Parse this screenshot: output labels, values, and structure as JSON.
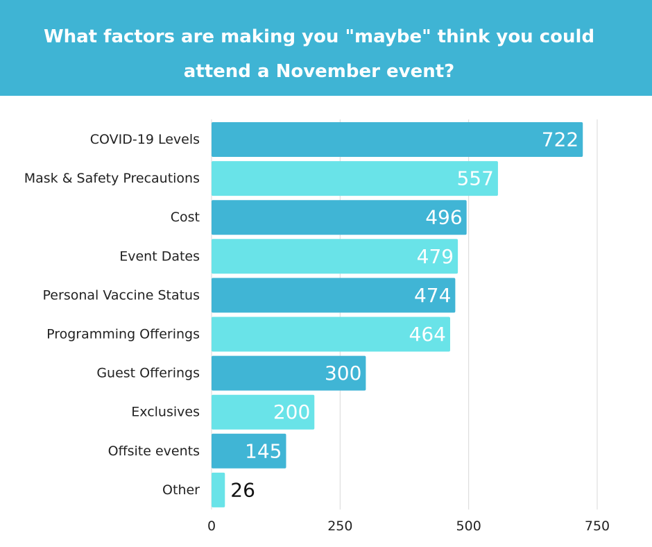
{
  "header": {
    "title": "What factors are making you \"maybe\" think you could attend a November event?"
  },
  "colors": {
    "header_bg": "#3fb4d4",
    "bar_dark": "#40b5d5",
    "bar_light": "#69e3e8",
    "gridline": "#d8d8d8",
    "label_text": "#222222"
  },
  "chart_data": {
    "type": "bar",
    "orientation": "horizontal",
    "title": "What factors are making you \"maybe\" think you could attend a November event?",
    "xlabel": "",
    "ylabel": "",
    "categories": [
      "COVID-19 Levels",
      "Mask & Safety Precautions",
      "Cost",
      "Event Dates",
      "Personal Vaccine Status",
      "Programming Offerings",
      "Guest Offerings",
      "Exclusives",
      "Offsite events",
      "Other"
    ],
    "values": [
      722,
      557,
      496,
      479,
      474,
      464,
      300,
      200,
      145,
      26
    ],
    "xlim": [
      0,
      750
    ],
    "xticks": [
      0,
      250,
      500,
      750
    ],
    "grid": true,
    "bar_colors": "alternating dark/light cyan"
  }
}
